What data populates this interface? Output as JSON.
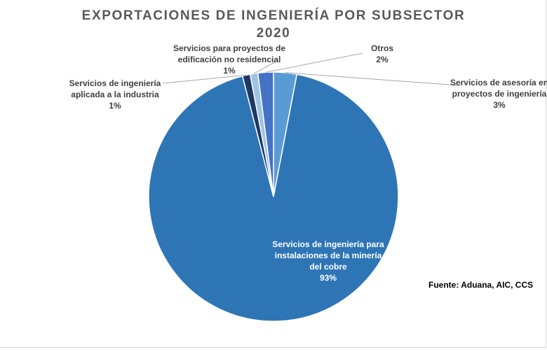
{
  "chart_data": {
    "type": "pie",
    "title": [
      "EXPORTACIONES DE INGENIERÍA POR SUBSECTOR",
      "2020"
    ],
    "source": "Fuente: Aduana, AIC, CCS",
    "slices": [
      {
        "label_lines": [
          "Servicios de asesoría en",
          "proyectos de ingeniería"
        ],
        "percent_label": "3%",
        "value": 3,
        "color": "#5b9bd5"
      },
      {
        "label_lines": [
          "Servicios de ingeniería para",
          "instalaciones de la minería",
          "del cobre"
        ],
        "percent_label": "93%",
        "value": 93,
        "color": "#2e75b6"
      },
      {
        "label_lines": [
          "Servicios de ingeniería",
          "aplicada a la industria"
        ],
        "percent_label": "1%",
        "value": 1,
        "color": "#1f3864"
      },
      {
        "label_lines": [
          "Servicios para proyectos de",
          "edificación no residencial"
        ],
        "percent_label": "1%",
        "value": 1,
        "color": "#9dc3e6"
      },
      {
        "label_lines": [
          "Otros"
        ],
        "percent_label": "2%",
        "value": 2,
        "color": "#4472c4"
      }
    ]
  }
}
